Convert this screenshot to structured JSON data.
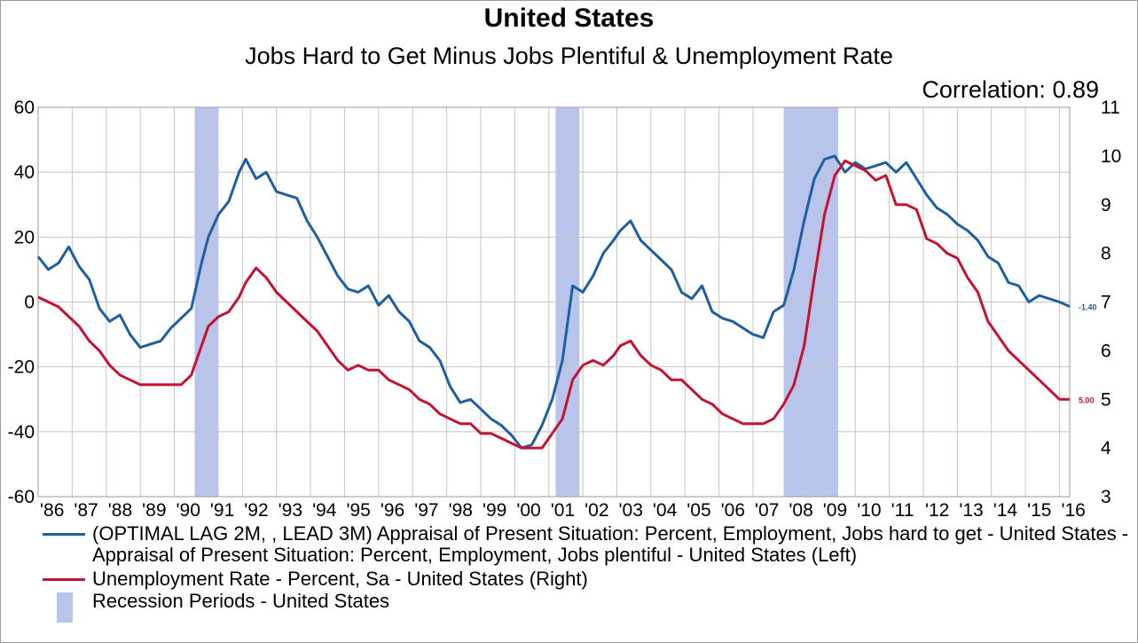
{
  "title": "United States",
  "subtitle": "Jobs Hard to Get Minus Jobs Plentiful & Unemployment Rate",
  "annotation": "Correlation: 0.89",
  "chart_data": {
    "type": "line",
    "x_tick_labels": [
      "'86",
      "'87",
      "'88",
      "'89",
      "'90",
      "'91",
      "'92",
      "'93",
      "'94",
      "'95",
      "'96",
      "'97",
      "'98",
      "'99",
      "'00",
      "'01",
      "'02",
      "'03",
      "'04",
      "'05",
      "'06",
      "'07",
      "'08",
      "'09",
      "'10",
      "'11",
      "'12",
      "'13",
      "'14",
      "'15",
      "'16"
    ],
    "xlim": [
      1986.0,
      2016.3
    ],
    "left_axis": {
      "ylim": [
        -60,
        60
      ],
      "ticks": [
        "60",
        "40",
        "20",
        "0",
        "-20",
        "-40",
        "-60"
      ]
    },
    "right_axis": {
      "ylim": [
        3,
        11
      ],
      "ticks": [
        "11",
        "10",
        "9",
        "8",
        "7",
        "6",
        "5",
        "4",
        "3"
      ]
    },
    "grid": true,
    "recessions": [
      [
        1990.6,
        1991.3
      ],
      [
        2001.2,
        2001.9
      ],
      [
        2007.9,
        2009.5
      ]
    ],
    "series": [
      {
        "name": "(OPTIMAL LAG 2M,  , LEAD 3M) Appraisal of Present Situation: Percent, Employment, Jobs hard to get - United States - Appraisal of Present Situation: Percent, Employment, Jobs plentiful - United States (Left)",
        "axis": "left",
        "color": "#1f5f9f",
        "end_label": "-1.40",
        "x": [
          1986.0,
          1986.3,
          1986.6,
          1986.9,
          1987.2,
          1987.5,
          1987.8,
          1988.1,
          1988.4,
          1988.7,
          1989.0,
          1989.3,
          1989.6,
          1989.9,
          1990.2,
          1990.5,
          1990.8,
          1991.0,
          1991.3,
          1991.6,
          1991.9,
          1992.1,
          1992.4,
          1992.7,
          1993.0,
          1993.3,
          1993.6,
          1993.9,
          1994.2,
          1994.5,
          1994.8,
          1995.1,
          1995.4,
          1995.7,
          1996.0,
          1996.3,
          1996.6,
          1996.9,
          1997.2,
          1997.5,
          1997.8,
          1998.1,
          1998.4,
          1998.7,
          1999.0,
          1999.3,
          1999.6,
          1999.9,
          2000.2,
          2000.5,
          2000.8,
          2001.1,
          2001.4,
          2001.7,
          2002.0,
          2002.3,
          2002.6,
          2002.9,
          2003.1,
          2003.4,
          2003.7,
          2004.0,
          2004.3,
          2004.6,
          2004.9,
          2005.2,
          2005.5,
          2005.8,
          2006.1,
          2006.4,
          2006.7,
          2007.0,
          2007.3,
          2007.6,
          2007.9,
          2008.2,
          2008.5,
          2008.8,
          2009.1,
          2009.4,
          2009.7,
          2010.0,
          2010.3,
          2010.6,
          2010.9,
          2011.2,
          2011.5,
          2011.8,
          2012.1,
          2012.4,
          2012.7,
          2013.0,
          2013.3,
          2013.6,
          2013.9,
          2014.2,
          2014.5,
          2014.8,
          2015.1,
          2015.4,
          2015.7,
          2016.0,
          2016.3
        ],
        "y": [
          14,
          10,
          12,
          17,
          11,
          7,
          -2,
          -6,
          -4,
          -10,
          -14,
          -13,
          -12,
          -8,
          -5,
          -2,
          12,
          20,
          27,
          31,
          40,
          44,
          38,
          40,
          34,
          33,
          32,
          25,
          20,
          14,
          8,
          4,
          3,
          5,
          -1,
          2,
          -3,
          -6,
          -12,
          -14,
          -18,
          -26,
          -31,
          -30,
          -33,
          -36,
          -38,
          -41,
          -45,
          -44,
          -38,
          -30,
          -18,
          5,
          3,
          8,
          15,
          19,
          22,
          25,
          19,
          16,
          13,
          10,
          3,
          1,
          5,
          -3,
          -5,
          -6,
          -8,
          -10,
          -11,
          -3,
          -1,
          10,
          25,
          38,
          44,
          45,
          40,
          43,
          41,
          42,
          43,
          40,
          43,
          38,
          33,
          29,
          27,
          24,
          22,
          19,
          14,
          12,
          6,
          5,
          0,
          2,
          1,
          0,
          -1.4
        ]
      },
      {
        "name": "Unemployment Rate - Percent, Sa - United States  (Right)",
        "axis": "right",
        "color": "#c41230",
        "end_label": "5.00",
        "x": [
          1986.0,
          1986.3,
          1986.6,
          1986.9,
          1987.2,
          1987.5,
          1987.8,
          1988.1,
          1988.4,
          1988.7,
          1989.0,
          1989.3,
          1989.6,
          1989.9,
          1990.2,
          1990.5,
          1990.8,
          1991.0,
          1991.3,
          1991.6,
          1991.9,
          1992.1,
          1992.4,
          1992.7,
          1993.0,
          1993.3,
          1993.6,
          1993.9,
          1994.2,
          1994.5,
          1994.8,
          1995.1,
          1995.4,
          1995.7,
          1996.0,
          1996.3,
          1996.6,
          1996.9,
          1997.2,
          1997.5,
          1997.8,
          1998.1,
          1998.4,
          1998.7,
          1999.0,
          1999.3,
          1999.6,
          1999.9,
          2000.2,
          2000.5,
          2000.8,
          2001.1,
          2001.4,
          2001.7,
          2002.0,
          2002.3,
          2002.6,
          2002.9,
          2003.1,
          2003.4,
          2003.7,
          2004.0,
          2004.3,
          2004.6,
          2004.9,
          2005.2,
          2005.5,
          2005.8,
          2006.1,
          2006.4,
          2006.7,
          2007.0,
          2007.3,
          2007.6,
          2007.9,
          2008.2,
          2008.5,
          2008.8,
          2009.1,
          2009.4,
          2009.7,
          2010.0,
          2010.3,
          2010.6,
          2010.9,
          2011.2,
          2011.5,
          2011.8,
          2012.1,
          2012.4,
          2012.7,
          2013.0,
          2013.3,
          2013.6,
          2013.9,
          2014.2,
          2014.5,
          2014.8,
          2015.1,
          2015.4,
          2015.7,
          2016.0,
          2016.3
        ],
        "y": [
          7.1,
          7.0,
          6.9,
          6.7,
          6.5,
          6.2,
          6.0,
          5.7,
          5.5,
          5.4,
          5.3,
          5.3,
          5.3,
          5.3,
          5.3,
          5.5,
          6.1,
          6.5,
          6.7,
          6.8,
          7.1,
          7.4,
          7.7,
          7.5,
          7.2,
          7.0,
          6.8,
          6.6,
          6.4,
          6.1,
          5.8,
          5.6,
          5.7,
          5.6,
          5.6,
          5.4,
          5.3,
          5.2,
          5.0,
          4.9,
          4.7,
          4.6,
          4.5,
          4.5,
          4.3,
          4.3,
          4.2,
          4.1,
          4.0,
          4.0,
          4.0,
          4.3,
          4.6,
          5.4,
          5.7,
          5.8,
          5.7,
          5.9,
          6.1,
          6.2,
          5.9,
          5.7,
          5.6,
          5.4,
          5.4,
          5.2,
          5.0,
          4.9,
          4.7,
          4.6,
          4.5,
          4.5,
          4.5,
          4.6,
          4.9,
          5.3,
          6.1,
          7.5,
          8.8,
          9.6,
          9.9,
          9.8,
          9.7,
          9.5,
          9.6,
          9.0,
          9.0,
          8.9,
          8.3,
          8.2,
          8.0,
          7.9,
          7.5,
          7.2,
          6.6,
          6.3,
          6.0,
          5.8,
          5.6,
          5.4,
          5.2,
          5.0,
          5.0
        ]
      }
    ],
    "legend": {
      "placement": "bottom",
      "recession_label": "Recession Periods - United States",
      "recession_color": "#b8c4ec"
    }
  }
}
